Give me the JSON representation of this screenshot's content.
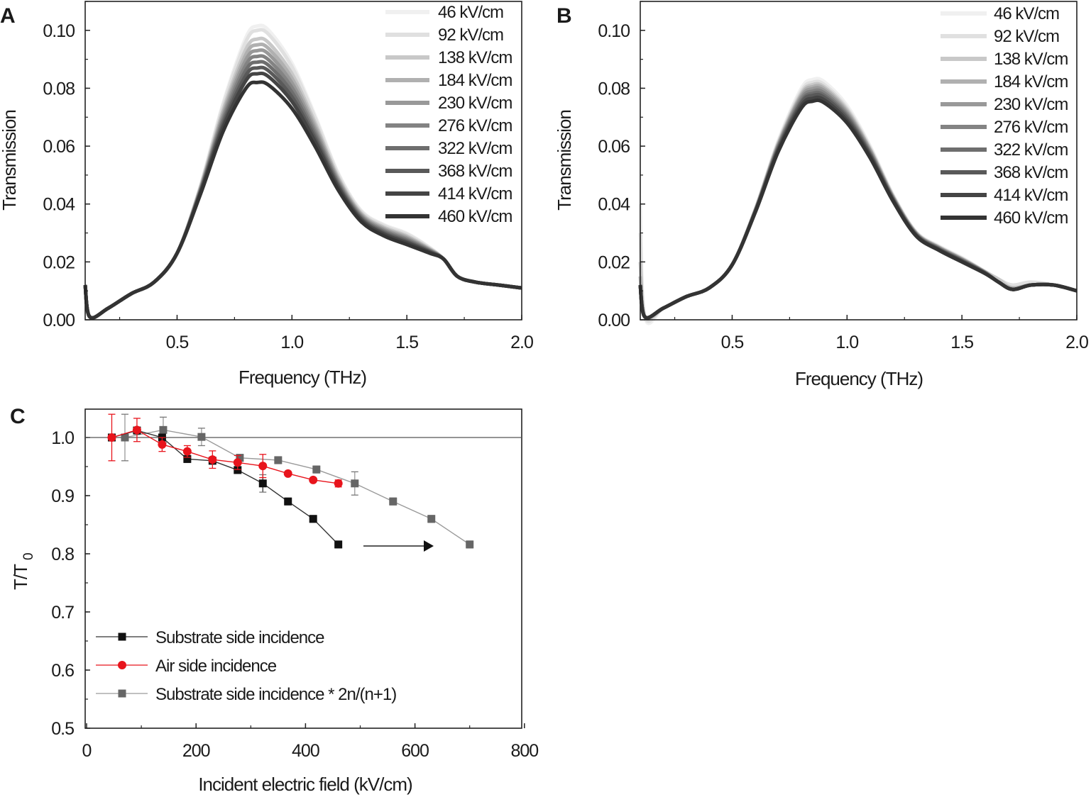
{
  "chart_data": [
    {
      "panel_label": "A",
      "type": "line",
      "xlabel": "Frequency (THz)",
      "ylabel": "Transmission",
      "xlim": [
        0.1,
        2.0
      ],
      "ylim": [
        0,
        0.11
      ],
      "xticks": [
        0.5,
        1.0,
        1.5,
        2.0
      ],
      "xtick_labels": [
        "0.5",
        "1.0",
        "1.5",
        "2.0"
      ],
      "yticks": [
        0,
        0.02,
        0.04,
        0.06,
        0.08,
        0.1
      ],
      "ytick_labels": [
        "0.00",
        "0.02",
        "0.04",
        "0.06",
        "0.08",
        "0.10"
      ],
      "grid": false,
      "legend_position": "top-right",
      "x": [
        0.1,
        0.12,
        0.2,
        0.3,
        0.4,
        0.5,
        0.6,
        0.7,
        0.8,
        0.85,
        0.9,
        1.0,
        1.1,
        1.2,
        1.3,
        1.4,
        1.5,
        1.6,
        1.66,
        1.72,
        1.8,
        1.9,
        2.0
      ],
      "series": [
        {
          "name": "46 kV/cm",
          "color": "#f0f0f0",
          "values": [
            0.012,
            0.001,
            0.004,
            0.009,
            0.013,
            0.023,
            0.0459,
            0.0748,
            0.0976,
            0.1015,
            0.0999,
            0.0886,
            0.0707,
            0.0509,
            0.0379,
            0.0329,
            0.0299,
            0.025,
            0.021,
            0.015,
            0.013,
            0.012,
            0.011
          ]
        },
        {
          "name": "92 kV/cm",
          "color": "#e0e0e0",
          "values": [
            0.012,
            0.001,
            0.004,
            0.009,
            0.013,
            0.023,
            0.0457,
            0.074,
            0.0962,
            0.1,
            0.0985,
            0.0874,
            0.0699,
            0.0504,
            0.0376,
            0.0326,
            0.0296,
            0.0248,
            0.021,
            0.015,
            0.013,
            0.012,
            0.011
          ]
        },
        {
          "name": "138 kV/cm",
          "color": "#c8c8c8",
          "values": [
            0.012,
            0.001,
            0.004,
            0.009,
            0.013,
            0.023,
            0.0453,
            0.0725,
            0.0935,
            0.097,
            0.0956,
            0.085,
            0.0683,
            0.0495,
            0.037,
            0.032,
            0.029,
            0.0245,
            0.021,
            0.015,
            0.013,
            0.012,
            0.011
          ]
        },
        {
          "name": "184 kV/cm",
          "color": "#b0b0b0",
          "values": [
            0.012,
            0.001,
            0.004,
            0.009,
            0.013,
            0.023,
            0.045,
            0.0715,
            0.0917,
            0.095,
            0.0936,
            0.0834,
            0.0672,
            0.0489,
            0.0366,
            0.0316,
            0.0286,
            0.0243,
            0.021,
            0.015,
            0.013,
            0.012,
            0.011
          ]
        },
        {
          "name": "230 kV/cm",
          "color": "#999999",
          "values": [
            0.012,
            0.001,
            0.004,
            0.009,
            0.013,
            0.023,
            0.0447,
            0.0705,
            0.0899,
            0.093,
            0.0917,
            0.0818,
            0.0661,
            0.0483,
            0.0362,
            0.0312,
            0.0282,
            0.0241,
            0.021,
            0.015,
            0.013,
            0.012,
            0.011
          ]
        },
        {
          "name": "276 kV/cm",
          "color": "#838383",
          "values": [
            0.012,
            0.001,
            0.004,
            0.009,
            0.013,
            0.023,
            0.0444,
            0.0695,
            0.0881,
            0.091,
            0.0897,
            0.0802,
            0.065,
            0.0477,
            0.0358,
            0.0308,
            0.0278,
            0.0239,
            0.021,
            0.015,
            0.013,
            0.012,
            0.011
          ]
        },
        {
          "name": "322 kV/cm",
          "color": "#6e6e6e",
          "values": [
            0.012,
            0.001,
            0.004,
            0.009,
            0.013,
            0.023,
            0.0441,
            0.0685,
            0.0863,
            0.089,
            0.0878,
            0.0786,
            0.0639,
            0.0471,
            0.0354,
            0.0304,
            0.0274,
            0.0237,
            0.021,
            0.015,
            0.013,
            0.012,
            0.011
          ]
        },
        {
          "name": "368 kV/cm",
          "color": "#595959",
          "values": [
            0.012,
            0.001,
            0.004,
            0.009,
            0.013,
            0.023,
            0.0438,
            0.0675,
            0.0845,
            0.087,
            0.0859,
            0.077,
            0.0628,
            0.0465,
            0.035,
            0.03,
            0.027,
            0.0235,
            0.021,
            0.015,
            0.013,
            0.012,
            0.011
          ]
        },
        {
          "name": "414 kV/cm",
          "color": "#444444",
          "values": [
            0.012,
            0.001,
            0.004,
            0.009,
            0.013,
            0.023,
            0.0435,
            0.0665,
            0.0827,
            0.085,
            0.0839,
            0.0754,
            0.0617,
            0.0459,
            0.0346,
            0.0296,
            0.0266,
            0.0233,
            0.021,
            0.015,
            0.013,
            0.012,
            0.011
          ]
        },
        {
          "name": "460 kV/cm",
          "color": "#333333",
          "values": [
            0.012,
            0.001,
            0.004,
            0.009,
            0.013,
            0.023,
            0.043,
            0.065,
            0.08,
            0.082,
            0.081,
            0.073,
            0.06,
            0.045,
            0.034,
            0.029,
            0.026,
            0.023,
            0.021,
            0.015,
            0.013,
            0.012,
            0.011
          ]
        }
      ]
    },
    {
      "panel_label": "B",
      "type": "line",
      "xlabel": "Frequency (THz)",
      "ylabel": "Transmission",
      "xlim": [
        0.1,
        2.0
      ],
      "ylim": [
        0,
        0.11
      ],
      "xticks": [
        0.5,
        1.0,
        1.5,
        2.0
      ],
      "xtick_labels": [
        "0.5",
        "1.0",
        "1.5",
        "2.0"
      ],
      "yticks": [
        0,
        0.02,
        0.04,
        0.06,
        0.08,
        0.1
      ],
      "ytick_labels": [
        "0.00",
        "0.02",
        "0.04",
        "0.06",
        "0.08",
        "0.10"
      ],
      "grid": false,
      "legend_position": "top-right",
      "x": [
        0.1,
        0.12,
        0.2,
        0.3,
        0.4,
        0.5,
        0.6,
        0.7,
        0.8,
        0.85,
        0.9,
        1.0,
        1.1,
        1.2,
        1.3,
        1.4,
        1.5,
        1.6,
        1.66,
        1.72,
        1.8,
        1.9,
        2.0
      ],
      "series": [
        {
          "name": "46 kV/cm",
          "color": "#f0f0f0",
          "values": [
            0.04,
            0.001,
            0.004,
            0.008,
            0.011,
            0.019,
            0.0381,
            0.0618,
            0.0798,
            0.083,
            0.0823,
            0.074,
            0.0601,
            0.0433,
            0.0305,
            0.0255,
            0.0215,
            0.0168,
            0.014,
            0.012,
            0.013,
            0.012,
            0.01
          ]
        },
        {
          "name": "92 kV/cm",
          "color": "#e0e0e0",
          "values": [
            0.03,
            0.001,
            0.004,
            0.008,
            0.011,
            0.019,
            0.038,
            0.0613,
            0.0789,
            0.082,
            0.0813,
            0.0732,
            0.0596,
            0.043,
            0.0303,
            0.0253,
            0.0213,
            0.0167,
            0.014,
            0.012,
            0.013,
            0.012,
            0.01
          ]
        },
        {
          "name": "138 kV/cm",
          "color": "#c8c8c8",
          "values": [
            0.02,
            0.001,
            0.004,
            0.008,
            0.011,
            0.019,
            0.0379,
            0.0609,
            0.0781,
            0.0812,
            0.0805,
            0.0726,
            0.0591,
            0.0427,
            0.0301,
            0.0251,
            0.0211,
            0.0166,
            0.014,
            0.011,
            0.012,
            0.012,
            0.01
          ]
        },
        {
          "name": "184 kV/cm",
          "color": "#b0b0b0",
          "values": [
            0.015,
            0.001,
            0.004,
            0.008,
            0.011,
            0.019,
            0.0378,
            0.0605,
            0.0775,
            0.0805,
            0.0799,
            0.072,
            0.0588,
            0.0425,
            0.03,
            0.025,
            0.021,
            0.0165,
            0.013,
            0.011,
            0.012,
            0.012,
            0.01
          ]
        },
        {
          "name": "230 kV/cm",
          "color": "#999999",
          "values": [
            0.012,
            0.001,
            0.004,
            0.008,
            0.011,
            0.019,
            0.0376,
            0.0602,
            0.0769,
            0.0798,
            0.0792,
            0.0714,
            0.0584,
            0.0423,
            0.0299,
            0.0249,
            0.0209,
            0.0164,
            0.013,
            0.0105,
            0.012,
            0.012,
            0.01
          ]
        },
        {
          "name": "276 kV/cm",
          "color": "#838383",
          "values": [
            0.012,
            0.001,
            0.004,
            0.008,
            0.011,
            0.019,
            0.0375,
            0.0598,
            0.0762,
            0.079,
            0.0784,
            0.0708,
            0.0579,
            0.0421,
            0.0297,
            0.0247,
            0.0207,
            0.0164,
            0.013,
            0.0105,
            0.012,
            0.012,
            0.01
          ]
        },
        {
          "name": "322 kV/cm",
          "color": "#6e6e6e",
          "values": [
            0.012,
            0.001,
            0.004,
            0.008,
            0.011,
            0.019,
            0.0374,
            0.0594,
            0.0754,
            0.0782,
            0.0776,
            0.0702,
            0.0575,
            0.0418,
            0.0295,
            0.0245,
            0.0205,
            0.0163,
            0.013,
            0.0105,
            0.012,
            0.012,
            0.01
          ]
        },
        {
          "name": "368 kV/cm",
          "color": "#595959",
          "values": [
            0.012,
            0.001,
            0.004,
            0.008,
            0.011,
            0.019,
            0.0373,
            0.059,
            0.0748,
            0.0775,
            0.0769,
            0.0696,
            0.0571,
            0.0416,
            0.0294,
            0.0244,
            0.0204,
            0.0162,
            0.013,
            0.0105,
            0.012,
            0.012,
            0.01
          ]
        },
        {
          "name": "414 kV/cm",
          "color": "#444444",
          "values": [
            0.012,
            0.001,
            0.004,
            0.008,
            0.011,
            0.019,
            0.0372,
            0.0585,
            0.0739,
            0.0765,
            0.076,
            0.0688,
            0.0566,
            0.0413,
            0.0292,
            0.0242,
            0.0202,
            0.0161,
            0.013,
            0.0105,
            0.012,
            0.012,
            0.01
          ]
        },
        {
          "name": "460 kV/cm",
          "color": "#333333",
          "values": [
            0.012,
            0.001,
            0.004,
            0.008,
            0.011,
            0.019,
            0.037,
            0.058,
            0.073,
            0.0755,
            0.075,
            0.068,
            0.056,
            0.041,
            0.029,
            0.024,
            0.02,
            0.016,
            0.013,
            0.0105,
            0.012,
            0.012,
            0.01
          ]
        }
      ]
    },
    {
      "panel_label": "C",
      "type": "scatter",
      "xlabel": "Incident electric field (kV/cm)",
      "ylabel": "T/T",
      "ylabel_subscript": "0",
      "xlim": [
        0,
        800
      ],
      "ylim": [
        0.5,
        1.05
      ],
      "xticks": [
        0,
        200,
        400,
        600,
        800
      ],
      "xtick_labels": [
        "0",
        "200",
        "400",
        "600",
        "800"
      ],
      "yticks": [
        0.5,
        0.6,
        0.7,
        0.8,
        0.9,
        1.0
      ],
      "ytick_labels": [
        "0.5",
        "0.6",
        "0.7",
        "0.8",
        "0.9",
        "1.0"
      ],
      "reference_line_y": 1.0,
      "grid": false,
      "legend_position": "bottom-left",
      "annotation": "arrow pointing right from black series end toward scaled gray series",
      "series": [
        {
          "name": "Substrate side incidence",
          "marker": "square",
          "color": "#111111",
          "line_color": "#333333",
          "x": [
            46,
            92,
            138,
            184,
            230,
            276,
            322,
            368,
            414,
            460
          ],
          "y": [
            1.0,
            1.012,
            1.0,
            0.963,
            0.96,
            0.944,
            0.921,
            0.89,
            0.86,
            0.816
          ],
          "err": [
            0.006,
            0.006,
            0.006,
            0.006,
            0.006,
            0.006,
            0.015,
            0.006,
            0.006,
            0.006
          ]
        },
        {
          "name": "Air side incidence",
          "marker": "circle",
          "color": "#e8141c",
          "line_color": "#e8141c",
          "x": [
            46,
            92,
            138,
            184,
            230,
            276,
            322,
            368,
            414,
            460
          ],
          "y": [
            1.0,
            1.013,
            0.988,
            0.976,
            0.962,
            0.957,
            0.951,
            0.938,
            0.927,
            0.921
          ],
          "err": [
            0.04,
            0.02,
            0.012,
            0.01,
            0.015,
            0.012,
            0.02,
            0,
            0,
            0.006
          ]
        },
        {
          "name": "Substrate side incidence * 2n/(n+1)",
          "marker": "square",
          "color": "#666666",
          "line_color": "#9a9a9a",
          "x": [
            70,
            140,
            210,
            280,
            350,
            420,
            490,
            560,
            630,
            700
          ],
          "y": [
            1.0,
            1.013,
            1.001,
            0.965,
            0.961,
            0.945,
            0.921,
            0.89,
            0.86,
            0.816
          ],
          "err": [
            0.04,
            0.022,
            0.015,
            0.006,
            0.006,
            0.006,
            0.02,
            0.006,
            0.006,
            0.006
          ]
        }
      ]
    }
  ]
}
